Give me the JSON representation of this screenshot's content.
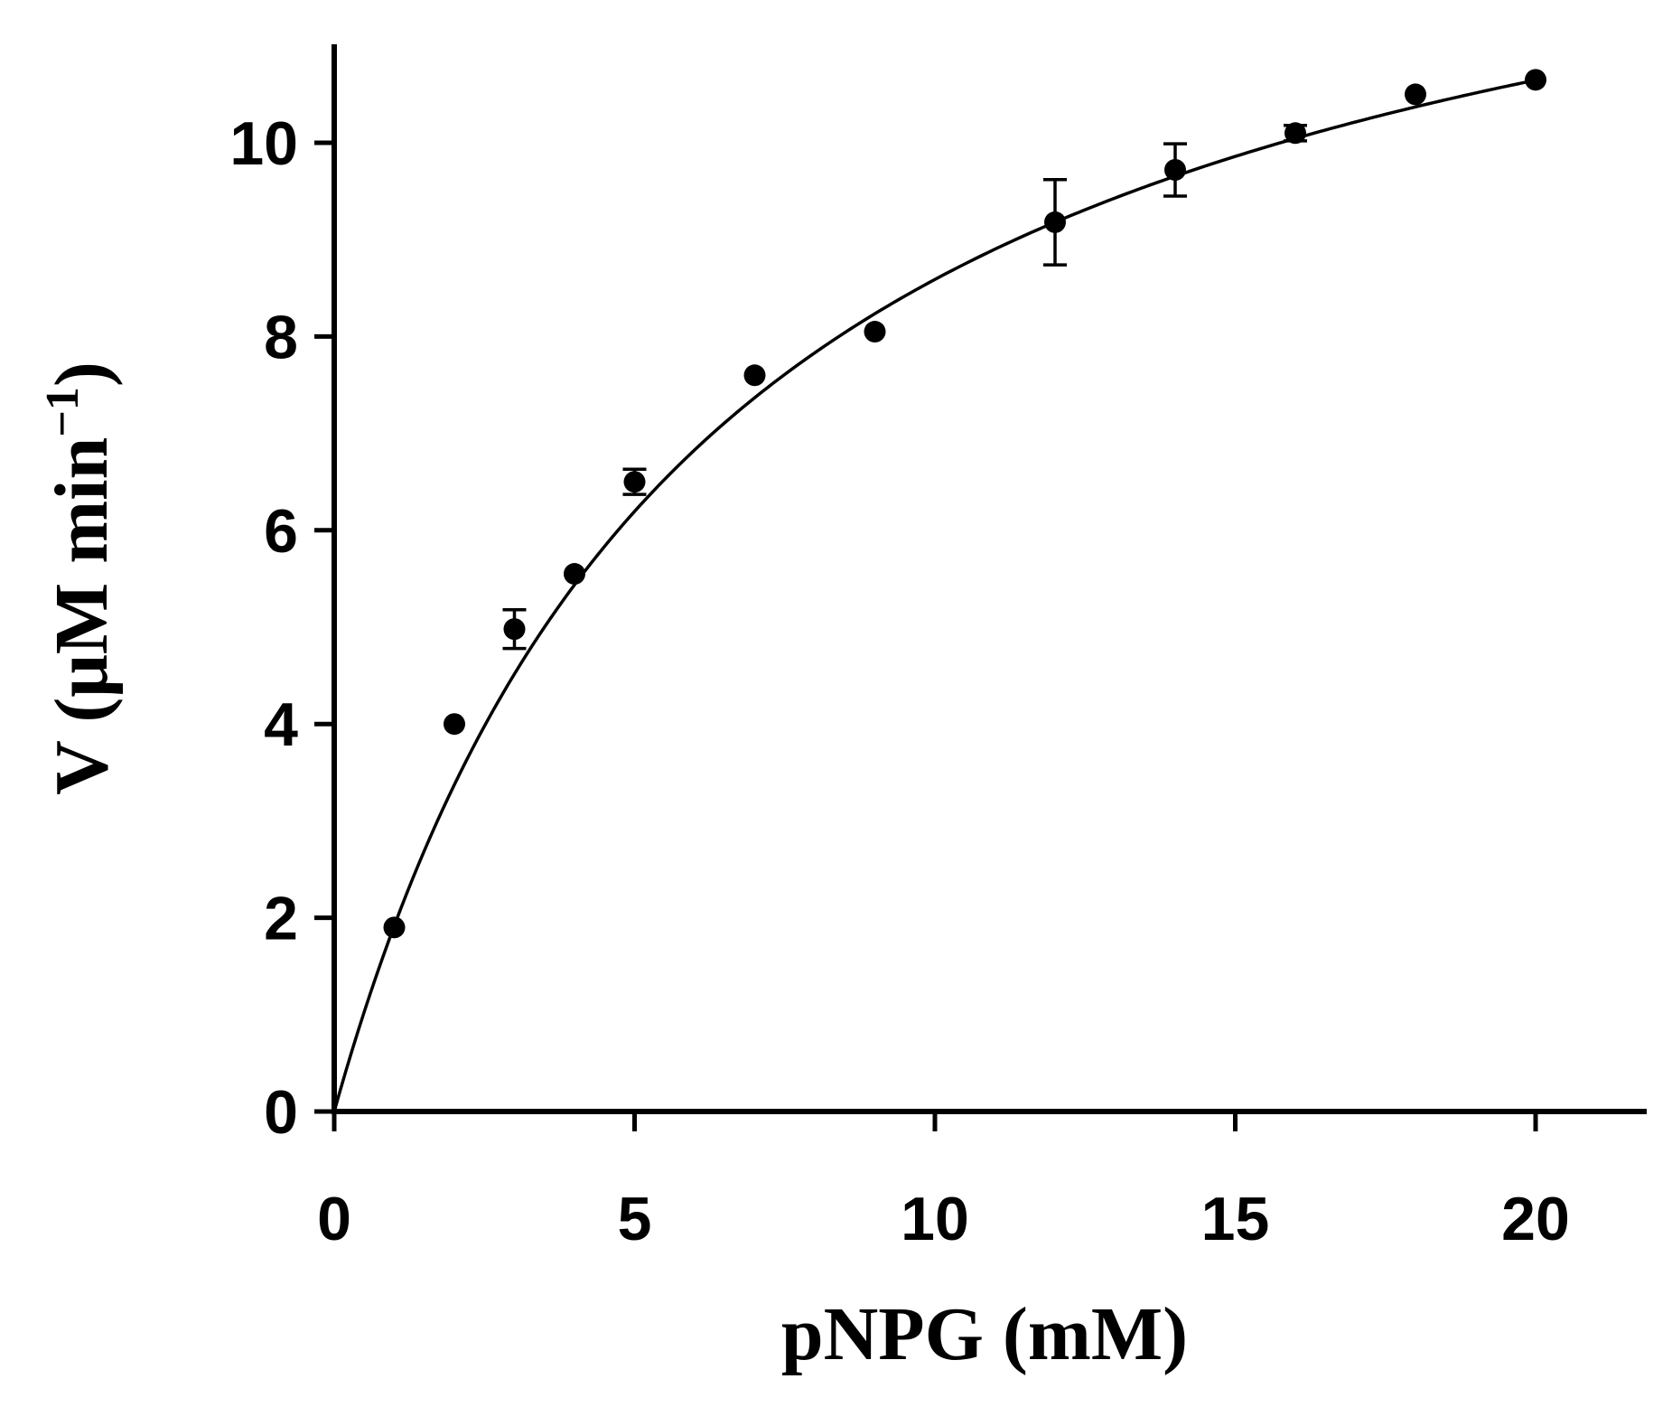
{
  "chart_data": {
    "type": "scatter",
    "title": "",
    "xlabel": "pNPG (mM)",
    "ylabel_main": "V (μM min",
    "ylabel_sup": "−1",
    "ylabel_close": ")",
    "xlim": [
      0,
      22
    ],
    "ylim": [
      0,
      11
    ],
    "xticks": [
      0,
      5,
      10,
      15,
      20
    ],
    "yticks": [
      0,
      2,
      4,
      6,
      8,
      10
    ],
    "grid": false,
    "legend": "none",
    "series": [
      {
        "marker": "circle",
        "points": [
          {
            "x": 1,
            "y": 1.9,
            "err": 0
          },
          {
            "x": 2,
            "y": 4.0,
            "err": 0
          },
          {
            "x": 3,
            "y": 4.98,
            "err": 0.2
          },
          {
            "x": 4,
            "y": 5.55,
            "err": 0
          },
          {
            "x": 5,
            "y": 6.5,
            "err": 0.13
          },
          {
            "x": 7,
            "y": 7.6,
            "err": 0
          },
          {
            "x": 9,
            "y": 8.05,
            "err": 0
          },
          {
            "x": 12,
            "y": 9.18,
            "err": 0.44
          },
          {
            "x": 14,
            "y": 9.72,
            "err": 0.27
          },
          {
            "x": 16,
            "y": 10.1,
            "err": 0.08
          },
          {
            "x": 18,
            "y": 10.5,
            "err": 0
          },
          {
            "x": 20,
            "y": 10.65,
            "err": 0
          }
        ]
      }
    ],
    "fit": {
      "model": "michaelis-menten",
      "vmax": 14.0,
      "km": 6.3,
      "x_range": [
        0,
        20
      ]
    }
  }
}
